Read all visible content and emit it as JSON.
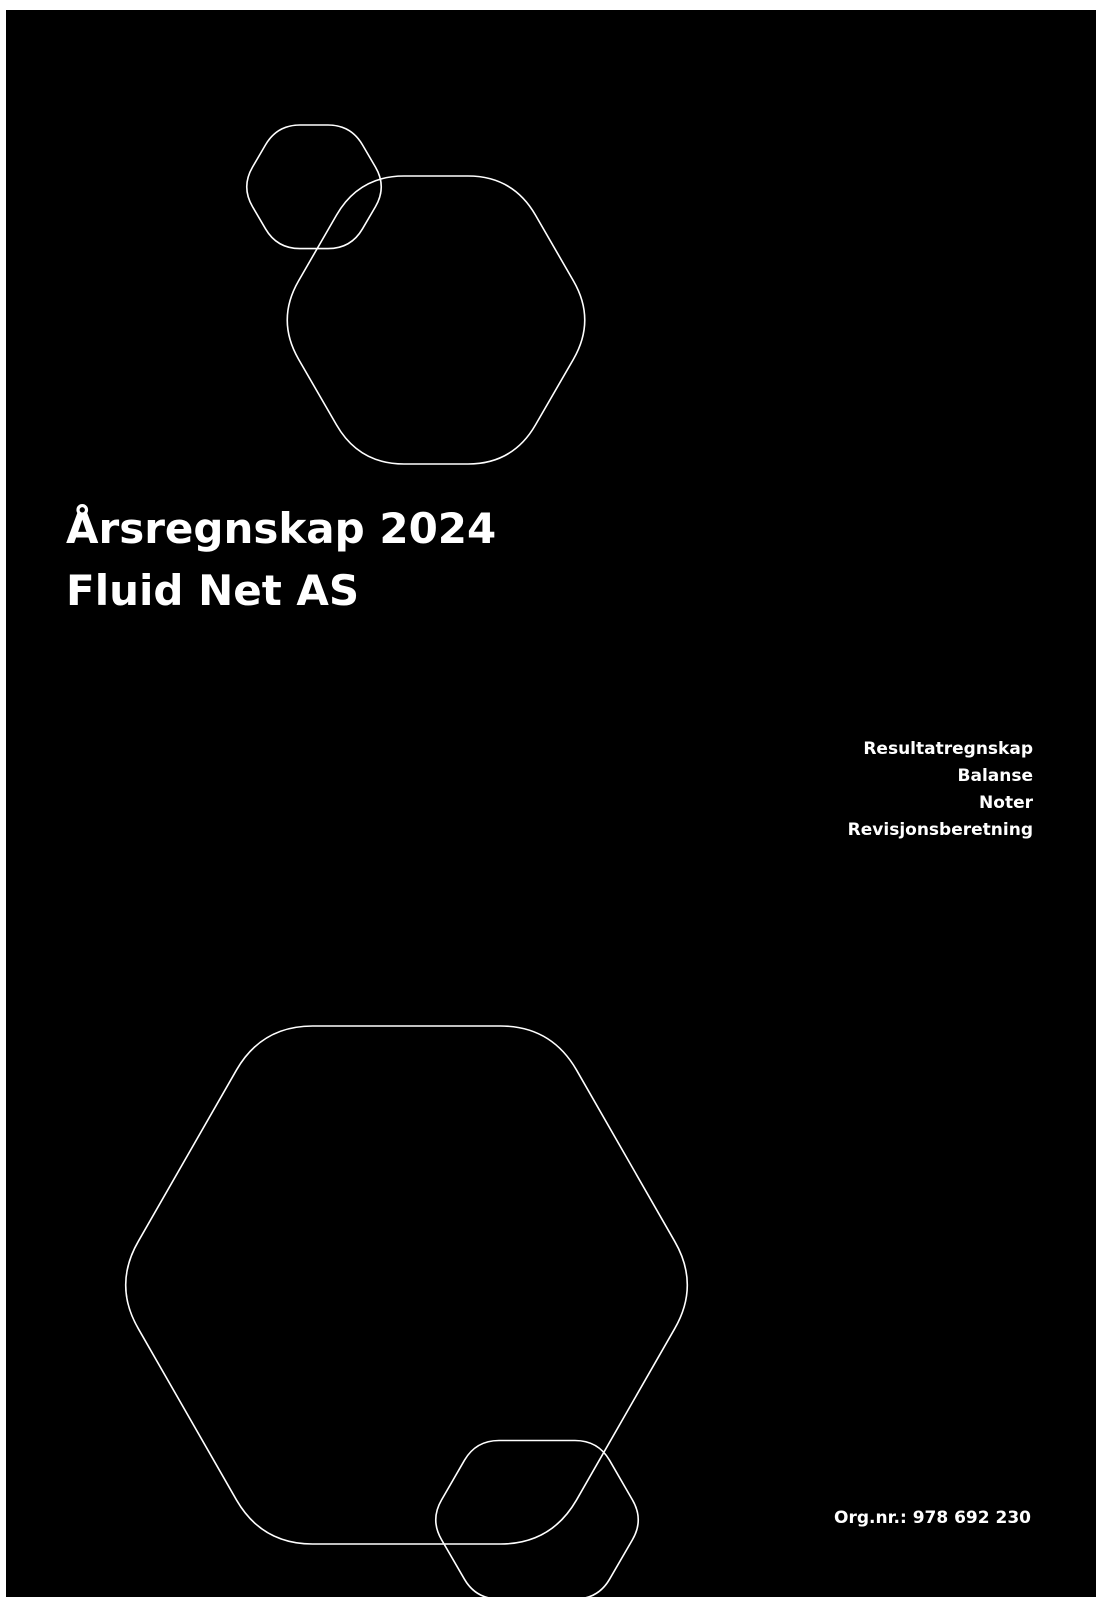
{
  "document": {
    "title": "Årsregnskap 2024",
    "company": "Fluid Net AS"
  },
  "contents": {
    "items": [
      "Resultatregnskap",
      "Balanse",
      "Noter",
      "Revisjonsberetning"
    ]
  },
  "footer": {
    "org_label": "Org.nr.:",
    "org_number": "978 692 230"
  },
  "colors": {
    "background": "#000000",
    "foreground": "#ffffff"
  },
  "decoration": {
    "shape": "rounded-hexagon-outline",
    "count": 4
  }
}
